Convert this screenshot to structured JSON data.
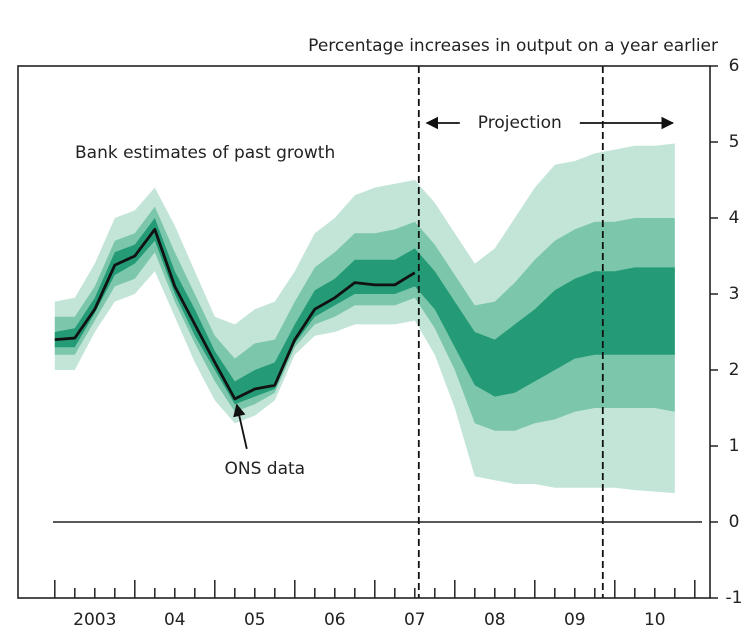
{
  "chart_data": {
    "type": "fan",
    "title": "Percentage increases in output on a year earlier",
    "annotations": [
      "Bank estimates of past growth",
      "Projection"
    ],
    "x": [
      2003,
      2003.25,
      2003.5,
      2003.75,
      2004,
      2004.25,
      2004.5,
      2004.75,
      2005,
      2005.25,
      2005.5,
      2005.75,
      2006,
      2006.25,
      2006.5,
      2006.75,
      2007,
      2007.25,
      2007.5,
      2007.75,
      2008,
      2008.25,
      2008.5,
      2008.75,
      2009,
      2009.25,
      2009.5,
      2009.75,
      2010,
      2010.25,
      2010.5,
      2010.75
    ],
    "xlim": [
      2002.54,
      2011.19
    ],
    "xticks": [
      {
        "value": 2003.5,
        "label": "2003"
      },
      {
        "value": 2004.5,
        "label": "04"
      },
      {
        "value": 2005.5,
        "label": "05"
      },
      {
        "value": 2006.5,
        "label": "06"
      },
      {
        "value": 2007.5,
        "label": "07"
      },
      {
        "value": 2008.5,
        "label": "08"
      },
      {
        "value": 2009.5,
        "label": "09"
      },
      {
        "value": 2010.5,
        "label": "10"
      }
    ],
    "xminorticks": [
      2003,
      2003.25,
      2003.5,
      2003.75,
      2004,
      2004.25,
      2004.5,
      2004.75,
      2005,
      2005.25,
      2005.5,
      2005.75,
      2006,
      2006.25,
      2006.5,
      2006.75,
      2007,
      2007.25,
      2007.5,
      2007.75,
      2008,
      2008.25,
      2008.5,
      2008.75,
      2009,
      2009.25,
      2009.5,
      2009.75,
      2010,
      2010.25,
      2010.5,
      2010.75,
      2011
    ],
    "ylim": [
      -1,
      6
    ],
    "yticks": [
      -1,
      0,
      1,
      2,
      3,
      4,
      5,
      6
    ],
    "hline": 0,
    "vlines": [
      2007.55,
      2009.85
    ],
    "series": [
      {
        "name": "ONS data",
        "color": "#111111",
        "values": [
          2.4,
          2.42,
          2.8,
          3.38,
          3.5,
          3.85,
          3.1,
          2.6,
          2.1,
          1.62,
          1.75,
          1.8,
          2.4,
          2.8,
          2.95,
          3.15,
          3.12,
          3.12,
          3.28,
          null,
          null,
          null,
          null,
          null,
          null,
          null,
          null,
          null,
          null,
          null,
          null,
          null
        ]
      }
    ],
    "bands": [
      {
        "color": "#c3e5d8",
        "upper": [
          2.9,
          2.95,
          3.4,
          4.0,
          4.1,
          4.4,
          3.9,
          3.3,
          2.7,
          2.6,
          2.8,
          2.9,
          3.3,
          3.8,
          4.0,
          4.3,
          4.4,
          4.45,
          4.5,
          4.2,
          3.8,
          3.4,
          3.6,
          4.0,
          4.4,
          4.7,
          4.75,
          4.85,
          4.9,
          4.95,
          4.95,
          4.98
        ],
        "lower": [
          2.0,
          2.0,
          2.5,
          2.9,
          3.0,
          3.3,
          2.7,
          2.1,
          1.6,
          1.3,
          1.4,
          1.6,
          2.2,
          2.45,
          2.5,
          2.6,
          2.6,
          2.6,
          2.65,
          2.2,
          1.5,
          0.6,
          0.55,
          0.5,
          0.5,
          0.45,
          0.45,
          0.45,
          0.45,
          0.42,
          0.4,
          0.38
        ]
      },
      {
        "color": "#7cc7ab",
        "upper": [
          2.7,
          2.7,
          3.1,
          3.7,
          3.8,
          4.15,
          3.55,
          3.0,
          2.45,
          2.15,
          2.35,
          2.4,
          2.9,
          3.35,
          3.55,
          3.8,
          3.8,
          3.85,
          3.95,
          3.65,
          3.25,
          2.85,
          2.9,
          3.15,
          3.45,
          3.7,
          3.85,
          3.95,
          3.95,
          4.0,
          4.0,
          4.0
        ],
        "lower": [
          2.2,
          2.2,
          2.65,
          3.1,
          3.2,
          3.55,
          2.9,
          2.35,
          1.85,
          1.45,
          1.55,
          1.7,
          2.3,
          2.6,
          2.7,
          2.85,
          2.85,
          2.85,
          2.95,
          2.55,
          2.0,
          1.3,
          1.2,
          1.2,
          1.3,
          1.35,
          1.45,
          1.5,
          1.5,
          1.5,
          1.5,
          1.45
        ]
      },
      {
        "color": "#249b76",
        "upper": [
          2.5,
          2.55,
          2.95,
          3.55,
          3.65,
          4.0,
          3.3,
          2.8,
          2.25,
          1.85,
          2.0,
          2.1,
          2.6,
          3.05,
          3.2,
          3.45,
          3.45,
          3.45,
          3.6,
          3.3,
          2.9,
          2.5,
          2.4,
          2.6,
          2.8,
          3.05,
          3.2,
          3.3,
          3.3,
          3.35,
          3.35,
          3.35
        ],
        "lower": [
          2.3,
          2.3,
          2.75,
          3.25,
          3.4,
          3.7,
          3.0,
          2.45,
          2.0,
          1.55,
          1.65,
          1.75,
          2.35,
          2.7,
          2.85,
          3.0,
          3.0,
          3.0,
          3.1,
          2.8,
          2.3,
          1.8,
          1.65,
          1.7,
          1.85,
          2.0,
          2.15,
          2.2,
          2.2,
          2.2,
          2.2,
          2.2
        ]
      }
    ]
  }
}
